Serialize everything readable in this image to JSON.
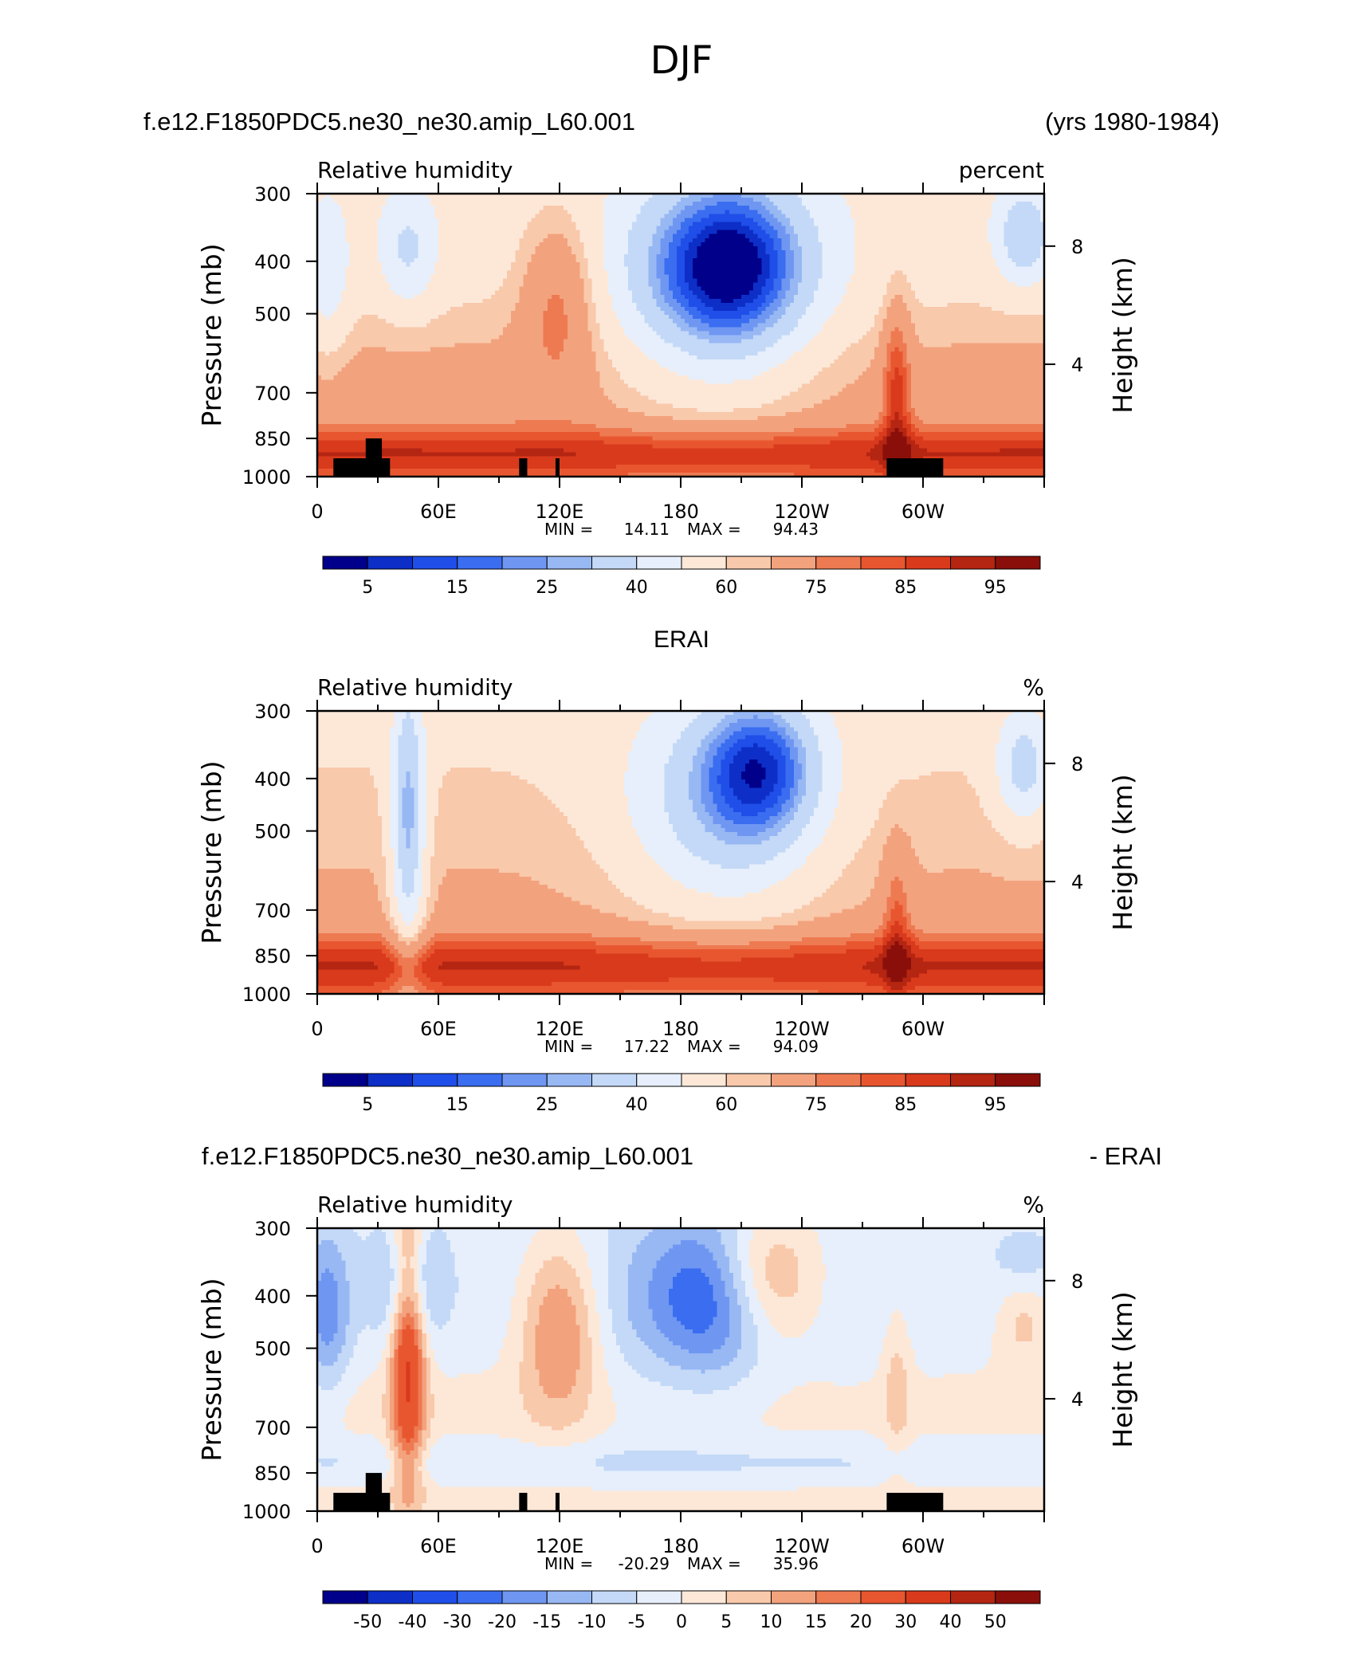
{
  "figure": {
    "title": "DJF"
  },
  "chart_data": [
    {
      "type": "heatmap",
      "case_title": "f.e12.F1850PDC5.ne30_ne30.amip_L60.001",
      "years": "(yrs 1980-1984)",
      "variable": "Relative humidity",
      "units": "percent",
      "ylabel": "Pressure (mb)",
      "ylabel2": "Height (km)",
      "y_ticks": [
        "300",
        "400",
        "500",
        "700",
        "850",
        "1000"
      ],
      "y2_ticks": [
        "8",
        "4"
      ],
      "x_ticks": [
        "0",
        "60E",
        "120E",
        "180",
        "120W",
        "60W"
      ],
      "min_label": "MIN =",
      "min_value": "14.11",
      "max_label": "MAX =",
      "max_value": "94.43",
      "colorbar_labels": [
        "5",
        "15",
        "25",
        "40",
        "60",
        "75",
        "85",
        "95"
      ],
      "topography": true,
      "field_key": "model"
    },
    {
      "type": "heatmap",
      "case_title": "ERAI",
      "years": "",
      "variable": "Relative humidity",
      "units": "%",
      "ylabel": "Pressure (mb)",
      "ylabel2": "Height (km)",
      "y_ticks": [
        "300",
        "400",
        "500",
        "700",
        "850",
        "1000"
      ],
      "y2_ticks": [
        "8",
        "4"
      ],
      "x_ticks": [
        "0",
        "60E",
        "120E",
        "180",
        "120W",
        "60W"
      ],
      "min_label": "MIN =",
      "min_value": "17.22",
      "max_label": "MAX =",
      "max_value": "94.09",
      "colorbar_labels": [
        "5",
        "15",
        "25",
        "40",
        "60",
        "75",
        "85",
        "95"
      ],
      "topography": false,
      "field_key": "obs"
    },
    {
      "type": "heatmap",
      "case_title": "f.e12.F1850PDC5.ne30_ne30.amip_L60.001",
      "years": "- ERAI",
      "variable": "Relative humidity",
      "units": "%",
      "ylabel": "Pressure (mb)",
      "ylabel2": "Height (km)",
      "y_ticks": [
        "300",
        "400",
        "500",
        "700",
        "850",
        "1000"
      ],
      "y2_ticks": [
        "8",
        "4"
      ],
      "x_ticks": [
        "0",
        "60E",
        "120E",
        "180",
        "120W",
        "60W"
      ],
      "min_label": "MIN =",
      "min_value": "-20.29",
      "max_label": "MAX =",
      "max_value": "35.96",
      "colorbar_labels": [
        "-50",
        "-40",
        "-30",
        "-20",
        "-15",
        "-10",
        "-5",
        "0",
        "5",
        "10",
        "15",
        "20",
        "30",
        "40",
        "50"
      ],
      "topography": true,
      "field_key": "diff"
    }
  ],
  "colors": {
    "palette": [
      "#00008b",
      "#0d2fc7",
      "#1f4ee8",
      "#3a6df0",
      "#6f97f2",
      "#98b8f4",
      "#c4d9f7",
      "#e6effb",
      "#fde8d8",
      "#f9c9ab",
      "#f3a27e",
      "#ee7a52",
      "#e8562f",
      "#d93a1c",
      "#b42512",
      "#8a0f0a"
    ],
    "topography": "#000000"
  }
}
